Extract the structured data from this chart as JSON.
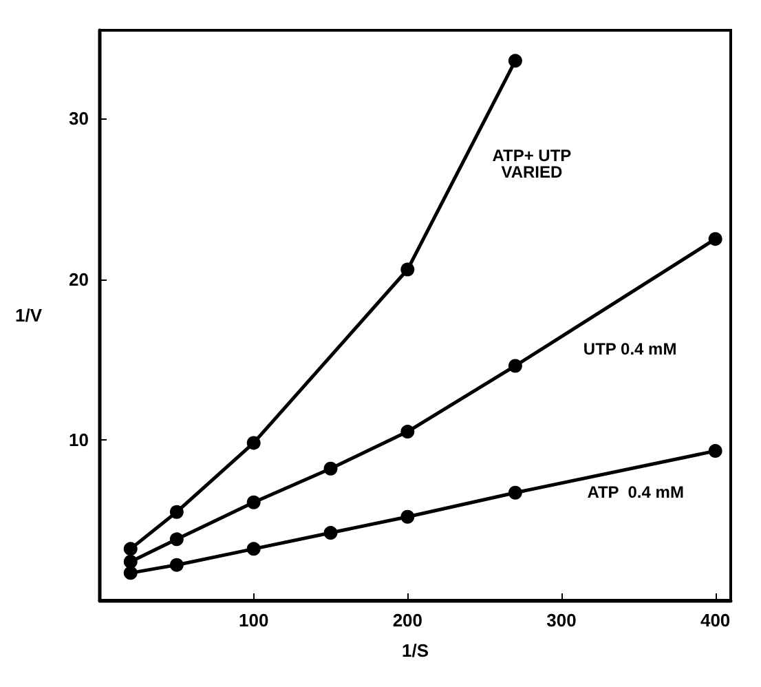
{
  "chart_data": {
    "type": "line",
    "xlabel": "1/S",
    "ylabel": "1/V",
    "xlim": [
      0,
      410
    ],
    "ylim": [
      0,
      35.5
    ],
    "xticks": [
      100,
      200,
      300,
      400
    ],
    "yticks": [
      10,
      20,
      30
    ],
    "grid": false,
    "marker": "circle",
    "line_style": "solid",
    "series": [
      {
        "name": "ATP+ UTP\nVARIED",
        "color": "#000000",
        "x": [
          20,
          50,
          100,
          200,
          270
        ],
        "values": [
          3.2,
          5.5,
          9.8,
          20.6,
          33.6
        ]
      },
      {
        "name": "UTP 0.4 mM",
        "color": "#000000",
        "x": [
          20,
          50,
          100,
          150,
          200,
          270,
          400
        ],
        "values": [
          2.4,
          3.8,
          6.1,
          8.2,
          10.5,
          14.6,
          22.5
        ]
      },
      {
        "name": "ATP  0.4 mM",
        "color": "#000000",
        "x": [
          20,
          50,
          100,
          150,
          200,
          270,
          400
        ],
        "values": [
          1.7,
          2.2,
          3.2,
          4.2,
          5.2,
          6.7,
          9.3
        ]
      }
    ]
  }
}
